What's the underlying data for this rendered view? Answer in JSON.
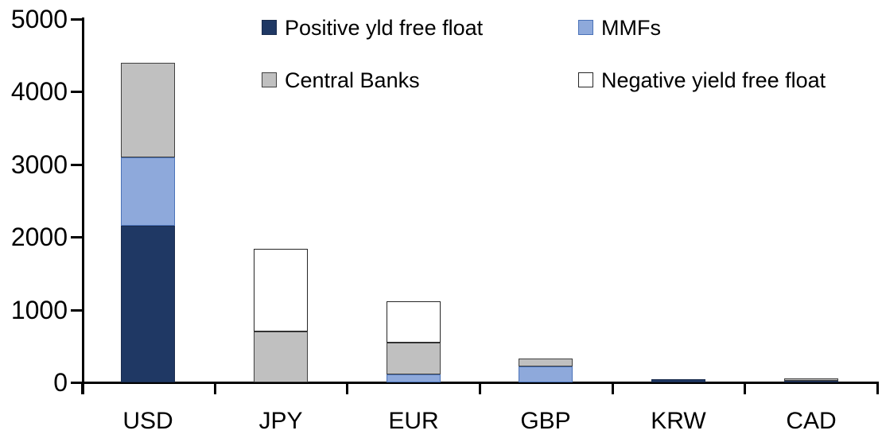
{
  "chart_data": {
    "type": "bar",
    "stacked": true,
    "title": "",
    "xlabel": "",
    "ylabel": "",
    "categories": [
      "USD",
      "JPY",
      "EUR",
      "GBP",
      "KRW",
      "CAD"
    ],
    "series": [
      {
        "name": "Positive yld free float",
        "fill": "#1F3864",
        "border": "#1A2C4E",
        "values": [
          2150,
          0,
          0,
          0,
          45,
          25
        ]
      },
      {
        "name": "MMFs",
        "fill": "#8EA9DB",
        "border": "#4A72B8",
        "values": [
          950,
          0,
          110,
          220,
          0,
          0
        ]
      },
      {
        "name": "Central Banks",
        "fill": "#C0C0C0",
        "border": "#404040",
        "values": [
          1300,
          700,
          440,
          110,
          0,
          30
        ]
      },
      {
        "name": "Negative yield free float",
        "fill": "#FFFFFF",
        "border": "#262626",
        "values": [
          0,
          1140,
          570,
          0,
          0,
          0
        ]
      }
    ],
    "totals": [
      4400,
      1840,
      1120,
      330,
      45,
      55
    ],
    "ylim": [
      0,
      5000
    ],
    "y_ticks": [
      "0",
      "1000",
      "2000",
      "3000",
      "4000",
      "5000"
    ],
    "grid": "off",
    "legend_position": "top",
    "axis_color": "#000000",
    "text_color": "#000000"
  }
}
